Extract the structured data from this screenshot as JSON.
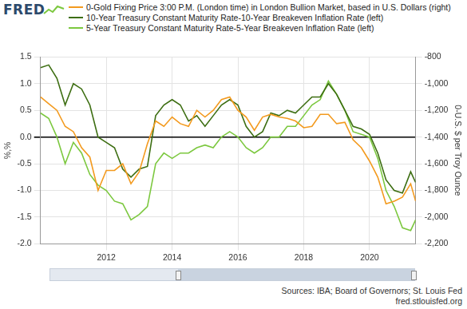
{
  "chart_data": {
    "type": "line",
    "logo": "FRED",
    "legend": "top",
    "grid": true,
    "ylabel": "%,%",
    "y2label": "0-U.S. $ per Troy Ounce",
    "source": "Sources: IBA; Board of Governors; St. Louis Fed",
    "url": "fred.stlouisfed.org",
    "x": [
      2010.0,
      2010.25,
      2010.5,
      2010.75,
      2011.0,
      2011.25,
      2011.5,
      2011.75,
      2012.0,
      2012.25,
      2012.5,
      2012.75,
      2013.0,
      2013.25,
      2013.5,
      2013.75,
      2014.0,
      2014.25,
      2014.5,
      2014.75,
      2015.0,
      2015.25,
      2015.5,
      2015.75,
      2016.0,
      2016.25,
      2016.5,
      2016.75,
      2017.0,
      2017.25,
      2017.5,
      2017.75,
      2018.0,
      2018.25,
      2018.5,
      2018.75,
      2019.0,
      2019.25,
      2019.5,
      2019.75,
      2020.0,
      2020.25,
      2020.5,
      2020.75,
      2021.0,
      2021.25,
      2021.4
    ],
    "xlim": [
      2010.0,
      2021.4
    ],
    "xticks": [
      2012,
      2014,
      2016,
      2018,
      2020
    ],
    "ylim": [
      -2.0,
      1.5
    ],
    "yticks": [
      {
        "value": -2.0,
        "label": "-2.0"
      },
      -1.5,
      {
        "value": -1.0,
        "label": "-1.0"
      },
      -0.5,
      {
        "value": 0,
        "label": "0.0"
      },
      0.5,
      {
        "value": 1.0,
        "label": "1.0"
      },
      1.5
    ],
    "y2lim": [
      -2200,
      -800
    ],
    "y2ticks": [
      {
        "value": -2200,
        "label": "-2,200"
      },
      {
        "value": -2000,
        "label": "-2,000"
      },
      {
        "value": -1800,
        "label": "-1,800"
      },
      {
        "value": -1600,
        "label": "-1,600"
      },
      {
        "value": -1400,
        "label": "-1,400"
      },
      {
        "value": -1200,
        "label": "-1,200"
      },
      {
        "value": -1000,
        "label": "-1,000"
      },
      -800
    ],
    "series": [
      {
        "name": "0-Gold Fixing Price 3:00 P.M. (London time) in London Bullion Market, based in U.S. Dollars (right)",
        "color": "#f39a1e",
        "axis": "y2",
        "values": [
          -1100,
          -1150,
          -1200,
          -1320,
          -1360,
          -1480,
          -1550,
          -1800,
          -1650,
          -1650,
          -1600,
          -1750,
          -1660,
          -1450,
          -1280,
          -1320,
          -1250,
          -1300,
          -1320,
          -1200,
          -1250,
          -1200,
          -1120,
          -1100,
          -1200,
          -1250,
          -1350,
          -1250,
          -1230,
          -1250,
          -1260,
          -1280,
          -1330,
          -1320,
          -1230,
          -1230,
          -1300,
          -1290,
          -1420,
          -1480,
          -1580,
          -1700,
          -1900,
          -1880,
          -1850,
          -1750,
          -1880
        ]
      },
      {
        "name": "10-Year Treasury Constant Maturity Rate-10-Year Breakeven Inflation Rate (left)",
        "color": "#3d6e12",
        "axis": "y",
        "values": [
          1.3,
          1.35,
          1.1,
          0.6,
          1.0,
          0.9,
          0.6,
          0.0,
          -0.1,
          -0.2,
          -0.6,
          -0.75,
          -0.6,
          -0.55,
          0.4,
          0.6,
          0.7,
          0.6,
          0.3,
          0.4,
          0.2,
          0.4,
          0.6,
          0.7,
          0.6,
          0.2,
          0.0,
          0.1,
          0.45,
          0.4,
          0.5,
          0.45,
          0.6,
          0.75,
          0.75,
          1.0,
          0.8,
          0.5,
          0.2,
          0.15,
          0.05,
          -0.3,
          -0.8,
          -1.0,
          -1.05,
          -0.65,
          -0.85
        ]
      },
      {
        "name": "5-Year Treasury Constant Maturity Rate-5-Year Breakeven Inflation Rate (left)",
        "color": "#7cc83f",
        "axis": "y",
        "values": [
          0.45,
          0.35,
          0.0,
          -0.5,
          -0.1,
          -0.3,
          -0.7,
          -0.9,
          -1.0,
          -1.2,
          -1.25,
          -1.55,
          -1.45,
          -1.3,
          -0.5,
          -0.3,
          -0.4,
          -0.3,
          -0.3,
          -0.2,
          -0.15,
          -0.2,
          0.0,
          0.1,
          0.0,
          -0.2,
          -0.3,
          -0.2,
          0.0,
          0.0,
          0.2,
          0.2,
          0.4,
          0.6,
          0.7,
          1.05,
          0.8,
          0.5,
          0.1,
          0.05,
          0.0,
          -0.4,
          -1.0,
          -1.3,
          -1.7,
          -1.75,
          -1.55
        ]
      }
    ]
  }
}
